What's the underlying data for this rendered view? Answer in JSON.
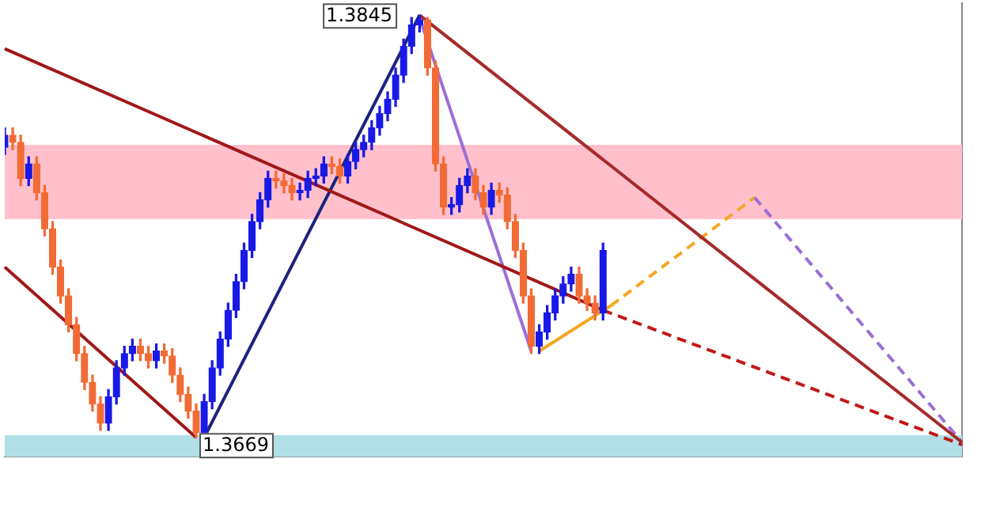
{
  "chart_data": {
    "type": "candlestick",
    "categories": [
      null,
      null,
      null,
      null,
      null,
      null,
      null,
      null,
      null,
      null,
      null,
      null,
      null,
      null,
      null,
      null,
      null,
      null,
      null,
      null,
      null,
      null,
      null,
      null,
      null,
      null,
      null,
      null,
      null,
      null,
      null,
      null,
      null,
      null,
      null,
      null,
      null,
      null,
      null,
      null,
      null,
      null,
      null,
      null,
      null,
      null,
      null,
      null,
      null,
      null,
      null,
      null,
      null,
      null,
      null,
      null,
      null,
      null,
      null,
      null,
      null,
      null,
      null,
      null,
      null,
      null,
      null,
      null,
      null,
      null,
      null,
      null,
      null,
      null,
      null,
      null,
      null,
      null,
      null,
      null,
      null,
      null,
      null,
      null,
      null,
      null,
      null,
      null,
      null,
      null,
      null,
      null,
      null,
      null,
      null,
      null,
      null,
      null,
      null,
      null,
      null,
      null,
      null,
      null,
      null,
      null,
      null,
      null,
      null,
      null,
      null,
      null,
      null,
      null,
      null,
      null,
      null,
      null,
      null,
      null,
      null
    ],
    "ohlc": [
      [
        1.379,
        1.3798,
        1.3787,
        1.3795
      ],
      [
        1.3795,
        1.3798,
        1.3789,
        1.3792
      ],
      [
        1.3792,
        1.3795,
        1.3774,
        1.3777
      ],
      [
        1.3777,
        1.3786,
        1.3774,
        1.3783
      ],
      [
        1.3783,
        1.3786,
        1.3768,
        1.3771
      ],
      [
        1.3771,
        1.3774,
        1.3753,
        1.3756
      ],
      [
        1.3756,
        1.3759,
        1.3737,
        1.374
      ],
      [
        1.374,
        1.3743,
        1.3725,
        1.3728
      ],
      [
        1.3728,
        1.3731,
        1.3713,
        1.3716
      ],
      [
        1.3716,
        1.3719,
        1.3701,
        1.3704
      ],
      [
        1.3704,
        1.3707,
        1.3689,
        1.3692
      ],
      [
        1.3692,
        1.3695,
        1.368,
        1.3683
      ],
      [
        1.3683,
        1.3686,
        1.3672,
        1.3675
      ],
      [
        1.3675,
        1.3689,
        1.3672,
        1.3686
      ],
      [
        1.3686,
        1.3701,
        1.3683,
        1.3698
      ],
      [
        1.3698,
        1.3707,
        1.3695,
        1.3704
      ],
      [
        1.3704,
        1.371,
        1.3701,
        1.3707
      ],
      [
        1.3707,
        1.371,
        1.3701,
        1.3704
      ],
      [
        1.3704,
        1.3707,
        1.3698,
        1.3701
      ],
      [
        1.3701,
        1.3708,
        1.3698,
        1.3705
      ],
      [
        1.3705,
        1.3708,
        1.37,
        1.3703
      ],
      [
        1.3703,
        1.3706,
        1.3692,
        1.3695
      ],
      [
        1.3695,
        1.3698,
        1.3684,
        1.3687
      ],
      [
        1.3687,
        1.369,
        1.3677,
        1.368
      ],
      [
        1.368,
        1.3683,
        1.3669,
        1.3671
      ],
      [
        1.3671,
        1.3687,
        1.367,
        1.3684
      ],
      [
        1.3684,
        1.3701,
        1.3681,
        1.3698
      ],
      [
        1.3698,
        1.3713,
        1.3695,
        1.371
      ],
      [
        1.371,
        1.3725,
        1.3707,
        1.3722
      ],
      [
        1.3722,
        1.3737,
        1.3719,
        1.3734
      ],
      [
        1.3734,
        1.375,
        1.3731,
        1.3747
      ],
      [
        1.3747,
        1.3762,
        1.3744,
        1.3759
      ],
      [
        1.3759,
        1.3771,
        1.3756,
        1.3768
      ],
      [
        1.3768,
        1.378,
        1.3765,
        1.3777
      ],
      [
        1.3777,
        1.378,
        1.3773,
        1.3776
      ],
      [
        1.3776,
        1.3779,
        1.3771,
        1.3774
      ],
      [
        1.3774,
        1.3777,
        1.3768,
        1.3771
      ],
      [
        1.3771,
        1.3775,
        1.3768,
        1.3772
      ],
      [
        1.3772,
        1.378,
        1.3769,
        1.3777
      ],
      [
        1.3777,
        1.3781,
        1.3774,
        1.3778
      ],
      [
        1.3778,
        1.3786,
        1.3775,
        1.3783
      ],
      [
        1.3783,
        1.3786,
        1.3779,
        1.3782
      ],
      [
        1.3782,
        1.3785,
        1.3775,
        1.3778
      ],
      [
        1.3778,
        1.3787,
        1.3775,
        1.3784
      ],
      [
        1.3784,
        1.3792,
        1.3781,
        1.3789
      ],
      [
        1.3789,
        1.3795,
        1.3786,
        1.3792
      ],
      [
        1.3792,
        1.3801,
        1.3789,
        1.3798
      ],
      [
        1.3798,
        1.3807,
        1.3795,
        1.3804
      ],
      [
        1.3804,
        1.3813,
        1.3801,
        1.381
      ],
      [
        1.381,
        1.3823,
        1.3807,
        1.382
      ],
      [
        1.382,
        1.3835,
        1.3817,
        1.3832
      ],
      [
        1.3832,
        1.3844,
        1.3829,
        1.3841
      ],
      [
        1.3841,
        1.3845,
        1.3838,
        1.3843
      ],
      [
        1.3843,
        1.3844,
        1.382,
        1.3823
      ],
      [
        1.3823,
        1.3826,
        1.378,
        1.3783
      ],
      [
        1.3783,
        1.3786,
        1.3762,
        1.3765
      ],
      [
        1.3765,
        1.3769,
        1.3762,
        1.3766
      ],
      [
        1.3766,
        1.3777,
        1.3763,
        1.3774
      ],
      [
        1.3774,
        1.3781,
        1.3771,
        1.3778
      ],
      [
        1.3778,
        1.3781,
        1.3768,
        1.3771
      ],
      [
        1.3771,
        1.3774,
        1.3762,
        1.3765
      ],
      [
        1.3765,
        1.3775,
        1.3762,
        1.3772
      ],
      [
        1.3772,
        1.3775,
        1.3767,
        1.377
      ],
      [
        1.377,
        1.3773,
        1.3756,
        1.3759
      ],
      [
        1.3759,
        1.3762,
        1.3744,
        1.3747
      ],
      [
        1.3747,
        1.375,
        1.3725,
        1.3728
      ],
      [
        1.3728,
        1.3731,
        1.3704,
        1.3707
      ],
      [
        1.3707,
        1.3716,
        1.3704,
        1.3713
      ],
      [
        1.3713,
        1.3724,
        1.371,
        1.3721
      ],
      [
        1.3721,
        1.3731,
        1.3718,
        1.3728
      ],
      [
        1.3728,
        1.3736,
        1.3725,
        1.3733
      ],
      [
        1.3733,
        1.374,
        1.373,
        1.3737
      ],
      [
        1.3737,
        1.374,
        1.3725,
        1.3728
      ],
      [
        1.3728,
        1.3731,
        1.3722,
        1.3725
      ],
      [
        1.3725,
        1.3728,
        1.3718,
        1.3721
      ],
      [
        1.3721,
        1.375,
        1.3718,
        1.3747
      ],
      null,
      null,
      null,
      null,
      null,
      null,
      null,
      null,
      null,
      null,
      null,
      null,
      null,
      null,
      null,
      null,
      null,
      null,
      null,
      null,
      null,
      null,
      null,
      null,
      null,
      null,
      null,
      null,
      null,
      null,
      null,
      null,
      null,
      null,
      null,
      null,
      null,
      null,
      null,
      null,
      null,
      null,
      null,
      null,
      null
    ],
    "colors": [
      "#1a1ae6",
      "#f26b36",
      "#f26b36",
      "#1a1ae6",
      "#f26b36",
      "#f26b36",
      "#f26b36",
      "#f26b36",
      "#f26b36",
      "#f26b36",
      "#f26b36",
      "#f26b36",
      "#f26b36",
      "#1a1ae6",
      "#1a1ae6",
      "#1a1ae6",
      "#1a1ae6",
      "#f26b36",
      "#f26b36",
      "#1a1ae6",
      "#f26b36",
      "#f26b36",
      "#f26b36",
      "#f26b36",
      "#f26b36",
      "#1a1ae6",
      "#1a1ae6",
      "#1a1ae6",
      "#1a1ae6",
      "#1a1ae6",
      "#1a1ae6",
      "#1a1ae6",
      "#1a1ae6",
      "#1a1ae6",
      "#f26b36",
      "#f26b36",
      "#f26b36",
      "#1a1ae6",
      "#1a1ae6",
      "#1a1ae6",
      "#1a1ae6",
      "#f26b36",
      "#f26b36",
      "#1a1ae6",
      "#1a1ae6",
      "#1a1ae6",
      "#1a1ae6",
      "#1a1ae6",
      "#1a1ae6",
      "#1a1ae6",
      "#1a1ae6",
      "#1a1ae6",
      "#1a1ae6",
      "#f26b36",
      "#f26b36",
      "#f26b36",
      "#1a1ae6",
      "#1a1ae6",
      "#1a1ae6",
      "#f26b36",
      "#f26b36",
      "#1a1ae6",
      "#f26b36",
      "#f26b36",
      "#f26b36",
      "#f26b36",
      "#f26b36",
      "#1a1ae6",
      "#1a1ae6",
      "#1a1ae6",
      "#1a1ae6",
      "#1a1ae6",
      "#f26b36",
      "#f26b36",
      "#f26b36",
      "#1a1ae6",
      null,
      null,
      null,
      null,
      null,
      null,
      null,
      null,
      null,
      null,
      null,
      null,
      null,
      null,
      null,
      null,
      null,
      null,
      null,
      null,
      null,
      null,
      null,
      null,
      null,
      null,
      null,
      null,
      null,
      null,
      null,
      null,
      null,
      null,
      null,
      null,
      null,
      null,
      null,
      null,
      null,
      null,
      null,
      null,
      null
    ],
    "series": [
      {
        "type": "line",
        "color": "#a01818",
        "line_style": "solid",
        "values": [
          1.3831,
          null,
          null,
          null,
          null,
          null,
          null,
          null,
          null,
          null,
          null,
          null,
          null,
          null,
          null,
          null,
          null,
          null,
          null,
          null,
          null,
          null,
          null,
          null,
          null,
          null,
          null,
          null,
          null,
          null,
          null,
          null,
          null,
          null,
          null,
          null,
          null,
          null,
          null,
          null,
          null,
          null,
          null,
          null,
          null,
          null,
          null,
          null,
          null,
          null,
          null,
          null,
          null,
          null,
          null,
          null,
          null,
          null,
          null,
          null,
          null,
          null,
          null,
          null,
          null,
          null,
          null,
          null,
          null,
          null,
          null,
          null,
          null,
          null,
          null,
          1.3722,
          null,
          null,
          null,
          null,
          null,
          null,
          null,
          null,
          null,
          null,
          null,
          null,
          null,
          null,
          null,
          null,
          null,
          null,
          null,
          null,
          null,
          null,
          null,
          null,
          null,
          null,
          null,
          null,
          null,
          null,
          null,
          null,
          null,
          null,
          null,
          null,
          null,
          null,
          null,
          null,
          null,
          null,
          null,
          null,
          null
        ]
      },
      {
        "type": "line",
        "color": "#c01818",
        "line_style": "dashed",
        "values": [
          null,
          null,
          null,
          null,
          null,
          null,
          null,
          null,
          null,
          null,
          null,
          null,
          null,
          null,
          null,
          null,
          null,
          null,
          null,
          null,
          null,
          null,
          null,
          null,
          null,
          null,
          null,
          null,
          null,
          null,
          null,
          null,
          null,
          null,
          null,
          null,
          null,
          null,
          null,
          null,
          null,
          null,
          null,
          null,
          null,
          null,
          null,
          null,
          null,
          null,
          null,
          null,
          null,
          null,
          null,
          null,
          null,
          null,
          null,
          null,
          null,
          null,
          null,
          null,
          null,
          null,
          null,
          null,
          null,
          null,
          null,
          null,
          null,
          null,
          null,
          1.3722,
          null,
          null,
          null,
          null,
          null,
          null,
          null,
          null,
          null,
          null,
          null,
          null,
          null,
          null,
          null,
          null,
          null,
          null,
          null,
          null,
          null,
          null,
          null,
          null,
          null,
          null,
          null,
          null,
          null,
          null,
          null,
          null,
          null,
          null,
          null,
          null,
          null,
          null,
          null,
          null,
          null,
          null,
          null,
          null,
          1.3666
        ]
      },
      {
        "type": "line",
        "color": "#a01818",
        "line_style": "solid",
        "values": [
          1.374,
          null,
          null,
          null,
          null,
          null,
          null,
          null,
          null,
          null,
          null,
          null,
          null,
          null,
          null,
          null,
          null,
          null,
          null,
          null,
          null,
          null,
          null,
          null,
          1.3669,
          null,
          null,
          null,
          null,
          null,
          null,
          null,
          null,
          null,
          null,
          null,
          null,
          null,
          null,
          null,
          null,
          null,
          null,
          null,
          null,
          null,
          null,
          null,
          null,
          null,
          null,
          null,
          null,
          null,
          null,
          null,
          null,
          null,
          null,
          null,
          null,
          null,
          null,
          null,
          null,
          null,
          null,
          null,
          null,
          null,
          null,
          null,
          null,
          null,
          null,
          null,
          null,
          null,
          null,
          null,
          null,
          null,
          null,
          null,
          null,
          null,
          null,
          null,
          null,
          null,
          null,
          null,
          null,
          null,
          null,
          null,
          null,
          null,
          null,
          null,
          null,
          null,
          null,
          null,
          null,
          null,
          null,
          null,
          null,
          null,
          null,
          null,
          null,
          null,
          null,
          null,
          null,
          null,
          null,
          null,
          null
        ]
      },
      {
        "type": "line",
        "color": "#1a237e",
        "line_style": "solid",
        "values": [
          null,
          null,
          null,
          null,
          null,
          null,
          null,
          null,
          null,
          null,
          null,
          null,
          null,
          null,
          null,
          null,
          null,
          null,
          null,
          null,
          null,
          null,
          null,
          null,
          null,
          1.3669,
          null,
          null,
          null,
          null,
          null,
          null,
          null,
          null,
          null,
          null,
          null,
          null,
          null,
          null,
          null,
          null,
          null,
          null,
          null,
          null,
          null,
          null,
          null,
          null,
          null,
          null,
          1.3845,
          null,
          null,
          null,
          null,
          null,
          null,
          null,
          null,
          null,
          null,
          null,
          null,
          null,
          null,
          null,
          null,
          null,
          null,
          null,
          null,
          null,
          null,
          null,
          null,
          null,
          null,
          null,
          null,
          null,
          null,
          null,
          null,
          null,
          null,
          null,
          null,
          null,
          null,
          null,
          null,
          null,
          null,
          null,
          null,
          null,
          null,
          null,
          null,
          null,
          null,
          null,
          null,
          null,
          null,
          null,
          null,
          null,
          null,
          null,
          null,
          null,
          null,
          null,
          null,
          null,
          null,
          null,
          null
        ]
      },
      {
        "type": "line",
        "color": "#a52a2a",
        "line_style": "solid",
        "values": [
          null,
          null,
          null,
          null,
          null,
          null,
          null,
          null,
          null,
          null,
          null,
          null,
          null,
          null,
          null,
          null,
          null,
          null,
          null,
          null,
          null,
          null,
          null,
          null,
          null,
          null,
          null,
          null,
          null,
          null,
          null,
          null,
          null,
          null,
          null,
          null,
          null,
          null,
          null,
          null,
          null,
          null,
          null,
          null,
          null,
          null,
          null,
          null,
          null,
          null,
          null,
          null,
          1.3845,
          null,
          null,
          null,
          null,
          null,
          null,
          null,
          null,
          null,
          null,
          null,
          null,
          null,
          null,
          null,
          null,
          null,
          null,
          null,
          null,
          null,
          null,
          null,
          null,
          null,
          null,
          null,
          null,
          null,
          null,
          null,
          null,
          null,
          null,
          null,
          null,
          null,
          null,
          null,
          null,
          null,
          null,
          null,
          null,
          null,
          null,
          null,
          null,
          null,
          null,
          null,
          null,
          null,
          null,
          null,
          null,
          null,
          null,
          null,
          null,
          null,
          null,
          null,
          null,
          null,
          null,
          null,
          1.3667
        ]
      },
      {
        "type": "line",
        "color": "#9b6fd6",
        "line_style": "solid",
        "values": [
          null,
          null,
          null,
          null,
          null,
          null,
          null,
          null,
          null,
          null,
          null,
          null,
          null,
          null,
          null,
          null,
          null,
          null,
          null,
          null,
          null,
          null,
          null,
          null,
          null,
          null,
          null,
          null,
          null,
          null,
          null,
          null,
          null,
          null,
          null,
          null,
          null,
          null,
          null,
          null,
          null,
          null,
          null,
          null,
          null,
          null,
          null,
          null,
          null,
          null,
          null,
          null,
          1.3844,
          null,
          null,
          null,
          null,
          null,
          null,
          null,
          null,
          null,
          null,
          null,
          null,
          null,
          1.3705,
          null,
          null,
          null,
          null,
          null,
          null,
          null,
          null,
          null,
          null,
          null,
          null,
          null,
          null,
          null,
          null,
          null,
          null,
          null,
          null,
          null,
          null,
          null,
          null,
          null,
          null,
          null,
          null,
          null,
          null,
          null,
          null,
          null,
          null,
          null,
          null,
          null,
          null,
          null,
          null,
          null,
          null,
          null,
          null,
          null,
          null,
          null,
          null,
          null,
          null,
          null,
          null,
          null,
          null
        ]
      },
      {
        "type": "line",
        "color": "#9b6fd6",
        "line_style": "dashed",
        "values": [
          null,
          null,
          null,
          null,
          null,
          null,
          null,
          null,
          null,
          null,
          null,
          null,
          null,
          null,
          null,
          null,
          null,
          null,
          null,
          null,
          null,
          null,
          null,
          null,
          null,
          null,
          null,
          null,
          null,
          null,
          null,
          null,
          null,
          null,
          null,
          null,
          null,
          null,
          null,
          null,
          null,
          null,
          null,
          null,
          null,
          null,
          null,
          null,
          null,
          null,
          null,
          null,
          null,
          null,
          null,
          null,
          null,
          null,
          null,
          null,
          null,
          null,
          null,
          null,
          null,
          null,
          null,
          null,
          null,
          null,
          null,
          null,
          null,
          null,
          null,
          null,
          null,
          null,
          null,
          null,
          null,
          null,
          null,
          null,
          null,
          null,
          null,
          null,
          null,
          null,
          null,
          null,
          null,
          null,
          1.3769,
          null,
          null,
          null,
          null,
          null,
          null,
          null,
          null,
          null,
          null,
          null,
          null,
          null,
          null,
          null,
          null,
          null,
          null,
          null,
          null,
          null,
          null,
          null,
          null,
          null,
          1.3667
        ]
      },
      {
        "type": "line",
        "color": "#f5a623",
        "line_style": "solid",
        "values": [
          null,
          null,
          null,
          null,
          null,
          null,
          null,
          null,
          null,
          null,
          null,
          null,
          null,
          null,
          null,
          null,
          null,
          null,
          null,
          null,
          null,
          null,
          null,
          null,
          null,
          null,
          null,
          null,
          null,
          null,
          null,
          null,
          null,
          null,
          null,
          null,
          null,
          null,
          null,
          null,
          null,
          null,
          null,
          null,
          null,
          null,
          null,
          null,
          null,
          null,
          null,
          null,
          null,
          null,
          null,
          null,
          null,
          null,
          null,
          null,
          null,
          null,
          null,
          null,
          null,
          null,
          null,
          1.3705,
          null,
          null,
          null,
          null,
          null,
          null,
          null,
          null,
          1.3724,
          null,
          null,
          null,
          null,
          null,
          null,
          null,
          null,
          null,
          null,
          null,
          null,
          null,
          null,
          null,
          null,
          null,
          null,
          null,
          null,
          null,
          null,
          null,
          null,
          null,
          null,
          null,
          null,
          null,
          null,
          null,
          null,
          null,
          null,
          null,
          null,
          null,
          null,
          null,
          null,
          null,
          null,
          null,
          null
        ]
      },
      {
        "type": "line",
        "color": "#f5a623",
        "line_style": "dashed",
        "values": [
          null,
          null,
          null,
          null,
          null,
          null,
          null,
          null,
          null,
          null,
          null,
          null,
          null,
          null,
          null,
          null,
          null,
          null,
          null,
          null,
          null,
          null,
          null,
          null,
          null,
          null,
          null,
          null,
          null,
          null,
          null,
          null,
          null,
          null,
          null,
          null,
          null,
          null,
          null,
          null,
          null,
          null,
          null,
          null,
          null,
          null,
          null,
          null,
          null,
          null,
          null,
          null,
          null,
          null,
          null,
          null,
          null,
          null,
          null,
          null,
          null,
          null,
          null,
          null,
          null,
          null,
          null,
          null,
          null,
          null,
          null,
          null,
          null,
          null,
          null,
          null,
          1.3724,
          null,
          null,
          null,
          null,
          null,
          null,
          null,
          null,
          null,
          null,
          null,
          null,
          null,
          null,
          null,
          null,
          null,
          1.3769,
          null,
          null,
          null,
          null,
          null,
          null,
          null,
          null,
          null,
          null,
          null,
          null,
          null,
          null,
          null,
          null,
          null,
          null,
          null,
          null,
          null,
          null,
          null,
          null,
          null,
          null
        ]
      }
    ],
    "bands": [
      {
        "axis": "y",
        "from": 1.376,
        "to": 1.3791,
        "color": "#ffc0cb"
      },
      {
        "axis": "y",
        "from": 1.3661,
        "to": 1.367,
        "color": "#b0e0e6"
      }
    ],
    "annotations": [
      "1.3845",
      "1.3669"
    ],
    "ylim": [
      1.3661,
      1.385
    ],
    "grid": false,
    "legend": false
  }
}
